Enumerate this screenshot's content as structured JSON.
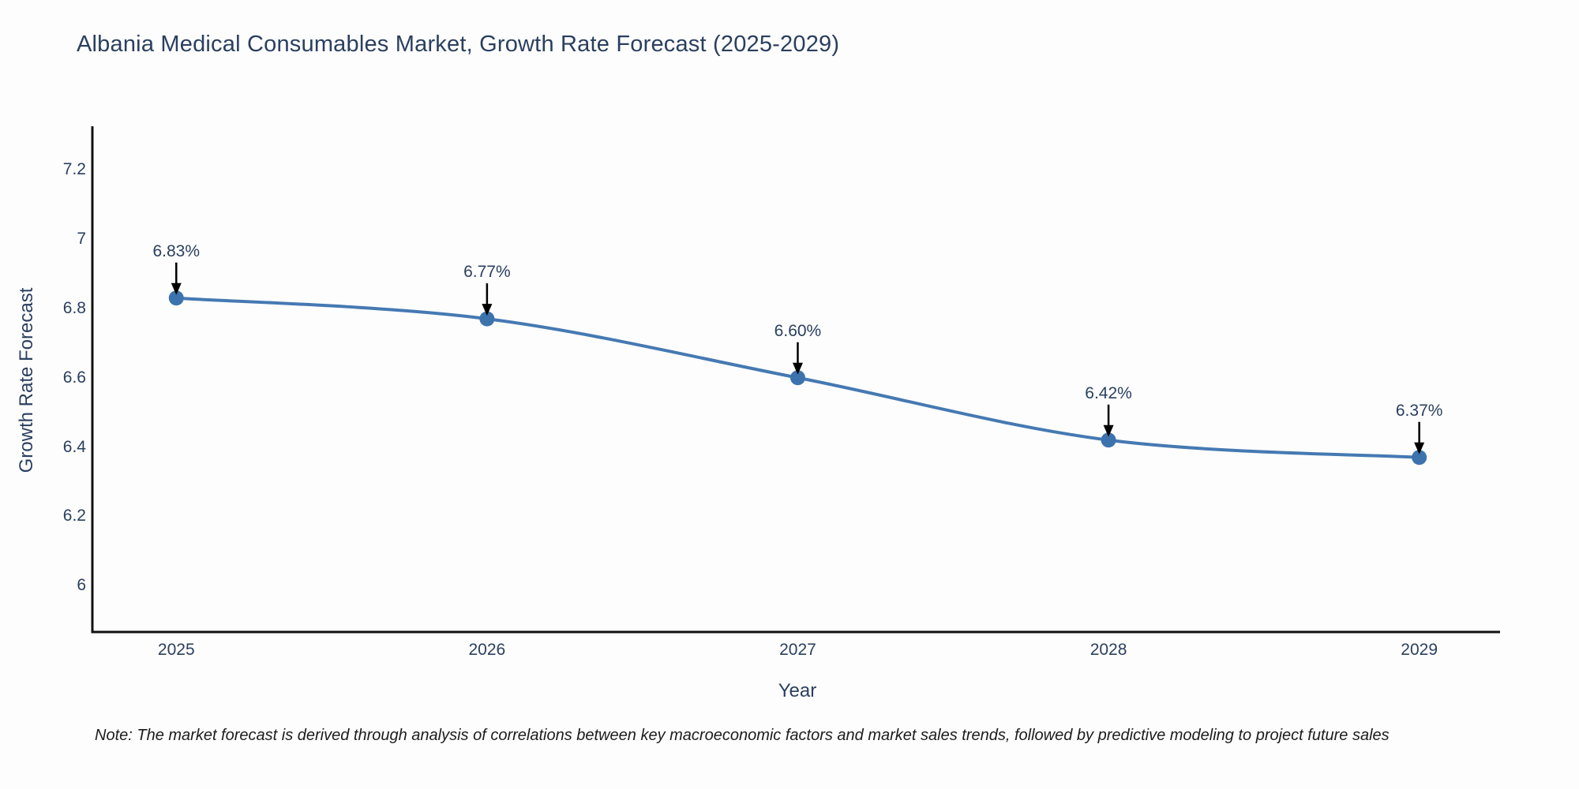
{
  "title": "Albania Medical Consumables Market, Growth Rate Forecast (2025-2029)",
  "note": "Note: The market forecast is derived through analysis of correlations between key macroeconomic factors and market sales trends, followed by predictive modeling to project future sales",
  "chart_data": {
    "type": "line",
    "title": "Albania Medical Consumables Market, Growth Rate Forecast (2025-2029)",
    "xlabel": "Year",
    "ylabel": "Growth Rate Forecast",
    "x": [
      2025,
      2026,
      2027,
      2028,
      2029
    ],
    "y": [
      6.83,
      6.77,
      6.6,
      6.42,
      6.37
    ],
    "point_labels": [
      "6.83%",
      "6.77%",
      "6.60%",
      "6.42%",
      "6.37%"
    ],
    "x_tick_labels": [
      "2025",
      "2026",
      "2027",
      "2028",
      "2029"
    ],
    "y_ticks": [
      6,
      6.2,
      6.4,
      6.6,
      6.8,
      7,
      7.2
    ],
    "y_tick_labels": [
      "6",
      "6.2",
      "6.4",
      "6.6",
      "6.8",
      "7",
      "7.2"
    ],
    "xlim": [
      2024.73,
      2029.26
    ],
    "ylim": [
      5.866,
      7.326
    ],
    "line_shape": "spline",
    "grid": false,
    "legend": false,
    "colors": {
      "line": "#4579b2",
      "marker": "#3d73ad",
      "axis": "#111111",
      "text": "#2a3f5f",
      "annotation_arrow": "#000000",
      "background": "#fdfdfd"
    }
  }
}
